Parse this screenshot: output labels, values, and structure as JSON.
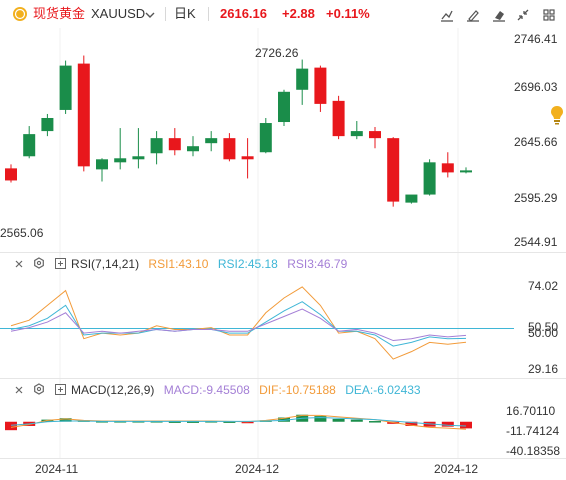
{
  "header": {
    "symbol_name": "现货黄金",
    "symbol_code": "XAUUSD",
    "period": "日K",
    "last_price": "2616.16",
    "change": "+2.88",
    "change_pct": "+0.11%",
    "up_color": "#e8171c",
    "down_color": "#1a8d4a"
  },
  "toolbar": {
    "icons": [
      "draw-line-icon",
      "brush-icon",
      "eraser-icon",
      "collapse-icon",
      "grid-icon"
    ]
  },
  "price_axis": {
    "labels": [
      "2746.41",
      "2696.03",
      "2645.66",
      "2595.29",
      "2544.91"
    ]
  },
  "time_axis": {
    "labels": [
      "2024-11",
      "2024-12",
      "2024-12"
    ]
  },
  "annotations": {
    "high_label": "2726.26",
    "low_label": "2565.06"
  },
  "rsi": {
    "title": "RSI(7,14,21)",
    "items": [
      {
        "label": "RSI1:43.10",
        "color": "#f29b3a"
      },
      {
        "label": "RSI2:45.18",
        "color": "#3fb6d6"
      },
      {
        "label": "RSI3:46.79",
        "color": "#a47fd6"
      }
    ],
    "axis_labels": [
      "74.02",
      "50.50",
      "50.00",
      "29.16"
    ]
  },
  "macd": {
    "title": "MACD(12,26,9)",
    "items": [
      {
        "label": "MACD:-9.45508",
        "color": "#a47fd6"
      },
      {
        "label": "DIF:-10.75188",
        "color": "#f29b3a"
      },
      {
        "label": "DEA:-6.02433",
        "color": "#3fb6d6"
      }
    ],
    "axis_labels": [
      "16.70110",
      "-11.74124",
      "-40.18358"
    ]
  },
  "chart_data": {
    "type": "candlestick",
    "y_range": [
      2544.91,
      2746.41
    ],
    "candles": [
      {
        "o": 2618,
        "h": 2622,
        "l": 2604,
        "c": 2606
      },
      {
        "o": 2630,
        "h": 2660,
        "l": 2628,
        "c": 2652
      },
      {
        "o": 2655,
        "h": 2672,
        "l": 2650,
        "c": 2668
      },
      {
        "o": 2676,
        "h": 2725,
        "l": 2672,
        "c": 2720
      },
      {
        "o": 2722,
        "h": 2730,
        "l": 2615,
        "c": 2620
      },
      {
        "o": 2617,
        "h": 2628,
        "l": 2605,
        "c": 2627
      },
      {
        "o": 2624,
        "h": 2658,
        "l": 2617,
        "c": 2628
      },
      {
        "o": 2627,
        "h": 2658,
        "l": 2618,
        "c": 2630
      },
      {
        "o": 2633,
        "h": 2655,
        "l": 2622,
        "c": 2648
      },
      {
        "o": 2648,
        "h": 2658,
        "l": 2631,
        "c": 2636
      },
      {
        "o": 2635,
        "h": 2650,
        "l": 2630,
        "c": 2640
      },
      {
        "o": 2643,
        "h": 2655,
        "l": 2635,
        "c": 2648
      },
      {
        "o": 2648,
        "h": 2653,
        "l": 2625,
        "c": 2627
      },
      {
        "o": 2630,
        "h": 2648,
        "l": 2608,
        "c": 2627
      },
      {
        "o": 2634,
        "h": 2668,
        "l": 2633,
        "c": 2663
      },
      {
        "o": 2664,
        "h": 2696,
        "l": 2660,
        "c": 2694
      },
      {
        "o": 2696,
        "h": 2726,
        "l": 2681,
        "c": 2717
      },
      {
        "o": 2718,
        "h": 2720,
        "l": 2674,
        "c": 2682
      },
      {
        "o": 2685,
        "h": 2690,
        "l": 2647,
        "c": 2650
      },
      {
        "o": 2650,
        "h": 2665,
        "l": 2647,
        "c": 2655
      },
      {
        "o": 2655,
        "h": 2659,
        "l": 2638,
        "c": 2648
      },
      {
        "o": 2648,
        "h": 2649,
        "l": 2580,
        "c": 2585
      },
      {
        "o": 2584,
        "h": 2590,
        "l": 2583,
        "c": 2592
      },
      {
        "o": 2592,
        "h": 2627,
        "l": 2591,
        "c": 2624
      },
      {
        "o": 2623,
        "h": 2634,
        "l": 2609,
        "c": 2614
      },
      {
        "o": 2614,
        "h": 2619,
        "l": 2613,
        "c": 2616
      }
    ],
    "rsi_range": [
      20,
      85
    ],
    "rsi_series": [
      {
        "name": "RSI1",
        "values": [
          52,
          55,
          63,
          71,
          45,
          48,
          47,
          48,
          52,
          50,
          50,
          51,
          47,
          47,
          59,
          67,
          73,
          63,
          48,
          49,
          45,
          34,
          38,
          43,
          42,
          43.1
        ]
      },
      {
        "name": "RSI2",
        "values": [
          50,
          52,
          56,
          63,
          47,
          48,
          48,
          48,
          50,
          49,
          50,
          50,
          48,
          48,
          54,
          60,
          65,
          58,
          49,
          49,
          47,
          41,
          43,
          46,
          45,
          45.18
        ]
      },
      {
        "name": "RSI3",
        "values": [
          49,
          51,
          54,
          59,
          48,
          49,
          48,
          49,
          50,
          49,
          50,
          50,
          49,
          49,
          53,
          57,
          61,
          56,
          49,
          50,
          48,
          44,
          45,
          47,
          46,
          46.79
        ]
      }
    ],
    "rsi_level": 50.5,
    "macd_range": [
      -40.18358,
      16.7011
    ],
    "macd_hist": [
      -12,
      -6,
      3,
      5,
      2,
      1,
      1,
      1,
      1,
      0.5,
      0.5,
      1,
      0.5,
      -1,
      2,
      6,
      10,
      8,
      4,
      3,
      1,
      -3,
      -6,
      -7,
      -7,
      -9.45508
    ],
    "dif_series": [
      -8,
      -4,
      2,
      4,
      2,
      1,
      1,
      1,
      1,
      1,
      1,
      1,
      0.5,
      0,
      2,
      5,
      9,
      9,
      7,
      5,
      3,
      -1,
      -5,
      -8,
      -9,
      -10.75188
    ],
    "dea_series": [
      -5,
      -3,
      0,
      1,
      1,
      0.5,
      0.5,
      0.5,
      0.5,
      0.5,
      0.5,
      0.5,
      0.5,
      0.5,
      1,
      2,
      5,
      6,
      5,
      4,
      3,
      1,
      -1,
      -3,
      -5,
      -6.02433
    ]
  }
}
